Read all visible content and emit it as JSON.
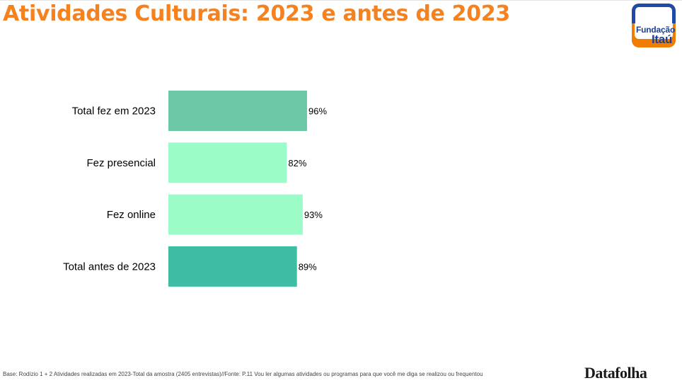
{
  "header": {
    "title": "Atividades Culturais: 2023 e antes de 2023",
    "logo_line1": "Fundação",
    "logo_line2": "Itaú"
  },
  "colors": {
    "title": "#f5821f",
    "bar_total_2023": "#6cc7a7",
    "bar_presencial": "#9bfcc8",
    "bar_online": "#9bfcc8",
    "bar_total_antes": "#3fbca4"
  },
  "chart_data": {
    "type": "bar",
    "orientation": "horizontal",
    "title": "",
    "categories": [
      "Total fez em 2023",
      "Fez presencial",
      "Fez online",
      "Total antes de 2023"
    ],
    "values": [
      96,
      82,
      93,
      89
    ],
    "value_labels": [
      "96%",
      "82%",
      "93%",
      "89%"
    ],
    "bar_colors": [
      "#6cc7a7",
      "#9bfcc8",
      "#9bfcc8",
      "#3fbca4"
    ],
    "xlabel": "",
    "ylabel": "",
    "xlim": [
      0,
      100
    ],
    "grid": false,
    "legend": "none"
  },
  "footer": {
    "footnote": "Base:  Rodízio 1 + 2  Atividades realizadas em 2023-Total da amostra  (2405 entrevistas)//Fonte: P.11 Vou ler algumas atividades ou programas para que você me diga se realizou ou frequentou",
    "brand": "Datafolha"
  }
}
